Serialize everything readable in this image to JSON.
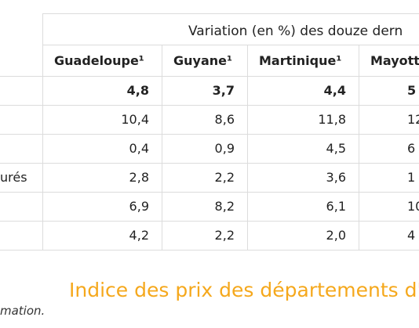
{
  "table": {
    "header_group": "Variation (en %) des douze dern",
    "columns": [
      "Guadeloupe¹",
      "Guyane¹",
      "Martinique¹",
      "Mayott"
    ],
    "rows": [
      {
        "cells": [
          "4,8",
          "3,7",
          "4,4",
          "5"
        ]
      },
      {
        "cells": [
          "10,4",
          "8,6",
          "11,8",
          "12"
        ]
      },
      {
        "cells": [
          "0,4",
          "0,9",
          "4,5",
          "6"
        ]
      },
      {
        "label": "urés",
        "cells": [
          "2,8",
          "2,2",
          "3,6",
          "1"
        ]
      },
      {
        "cells": [
          "6,9",
          "8,2",
          "6,1",
          "10"
        ]
      },
      {
        "cells": [
          "4,2",
          "2,2",
          "2,0",
          "4"
        ]
      }
    ]
  },
  "caption": "Indice des prix des départements d'",
  "note": "mation."
}
